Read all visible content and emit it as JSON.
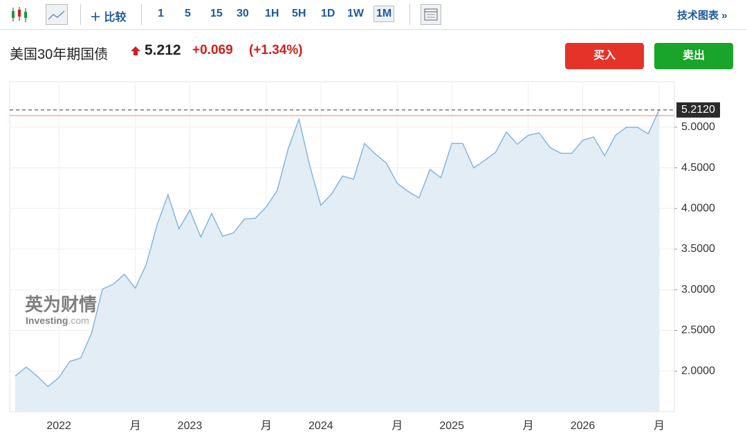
{
  "toolbar": {
    "compare": "比较",
    "intervals": [
      "1",
      "5",
      "15",
      "30",
      "1H",
      "5H",
      "1D",
      "1W",
      "1M"
    ],
    "active_interval": 8,
    "tech_chart": "技术图表 »"
  },
  "header": {
    "title": "美国30年期国债",
    "price": "5.212",
    "change": "+0.069",
    "change_pct": "(+1.34%)",
    "buy": "买入",
    "sell": "卖出"
  },
  "watermark": {
    "brand": "英为财情",
    "site": "Investing",
    "domain": ".com"
  },
  "chart_data": {
    "type": "area",
    "categories": [
      null,
      null,
      null,
      null,
      "2022",
      null,
      null,
      null,
      null,
      null,
      null,
      "月",
      null,
      null,
      null,
      null,
      "2023",
      null,
      null,
      null,
      null,
      null,
      null,
      "月",
      null,
      null,
      null,
      null,
      "2024",
      null,
      null,
      null,
      null,
      null,
      null,
      "月",
      null,
      null,
      null,
      null,
      "2025",
      null,
      null,
      null,
      null,
      null,
      null,
      "月",
      null,
      null,
      null,
      null,
      "2026",
      null,
      null,
      null,
      null,
      null,
      null,
      "月"
    ],
    "series": [
      {
        "name": "美国30年期国债",
        "color": "#7fb1d8",
        "values": [
          1.94,
          2.05,
          1.94,
          1.81,
          1.92,
          2.12,
          2.16,
          2.47,
          3.01,
          3.07,
          3.19,
          3.02,
          3.31,
          3.8,
          4.17,
          3.75,
          3.98,
          3.65,
          3.94,
          3.66,
          3.7,
          3.87,
          3.88,
          4.02,
          4.22,
          4.73,
          5.1,
          4.52,
          4.04,
          4.18,
          4.4,
          4.36,
          4.8,
          4.67,
          4.56,
          4.31,
          4.21,
          4.13,
          4.48,
          4.38,
          4.8,
          4.8,
          4.5,
          4.59,
          4.69,
          4.94,
          4.79,
          4.9,
          4.93,
          4.75,
          4.68,
          4.68,
          4.84,
          4.88,
          4.65,
          4.9,
          5.0,
          5.0,
          4.92,
          5.212
        ]
      }
    ],
    "ylim": [
      1.5,
      5.56
    ],
    "yticks": [
      {
        "value": 2,
        "label": "2.0000"
      },
      {
        "value": 2.5,
        "label": "2.5000"
      },
      {
        "value": 3,
        "label": "3.0000"
      },
      {
        "value": 3.5,
        "label": "3.5000"
      },
      {
        "value": 4,
        "label": "4.0000"
      },
      {
        "value": 4.5,
        "label": "4.5000"
      },
      {
        "value": 5,
        "label": "5.0000"
      }
    ],
    "last_tag": {
      "value": 5.212,
      "label": "5.2120"
    },
    "reference_line": 5.143,
    "grid": true
  }
}
